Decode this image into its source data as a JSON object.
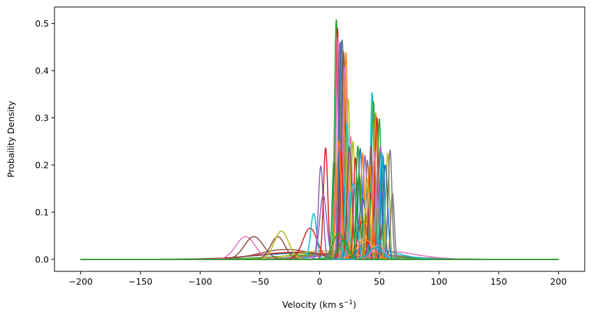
{
  "chart_data": {
    "type": "line",
    "title": "",
    "xlabel": "Velocity (km s",
    "xlabel_sup": "−1",
    "xlabel_close": ")",
    "ylabel": "Probaility Density",
    "xlim": [
      -222,
      222
    ],
    "ylim": [
      -0.0255,
      0.535
    ],
    "x_ticks": [
      -200,
      -150,
      -100,
      -50,
      0,
      50,
      100,
      150,
      200
    ],
    "x_tick_labels": [
      "−200",
      "−150",
      "−100",
      "−50",
      "0",
      "50",
      "100",
      "150",
      "200"
    ],
    "y_ticks": [
      0.0,
      0.1,
      0.2,
      0.3,
      0.4,
      0.5
    ],
    "y_tick_labels": [
      "0.0",
      "0.1",
      "0.2",
      "0.3",
      "0.4",
      "0.5"
    ],
    "x_range": [
      -200,
      200
    ],
    "grid": false,
    "legend": "none",
    "series_encoding": "gaussian components [mean km/s, sigma km/s, amplitude]",
    "series": [
      {
        "color": "#1f77b4",
        "mean": -15,
        "sigma": 38,
        "amp": 0.013
      },
      {
        "color": "#ff7f0e",
        "mean": 25,
        "sigma": 30,
        "amp": 0.016
      },
      {
        "color": "#2ca02c",
        "mean": 10,
        "sigma": 40,
        "amp": 0.011
      },
      {
        "color": "#d62728",
        "mean": -20,
        "sigma": 32,
        "amp": 0.015
      },
      {
        "color": "#9467bd",
        "mean": 35,
        "sigma": 28,
        "amp": 0.014
      },
      {
        "color": "#8c564b",
        "mean": -28,
        "sigma": 22,
        "amp": 0.021
      },
      {
        "color": "#e377c2",
        "mean": 55,
        "sigma": 25,
        "amp": 0.017
      },
      {
        "color": "#7f7f7f",
        "mean": 30,
        "sigma": 35,
        "amp": 0.012
      },
      {
        "color": "#bcbd22",
        "mean": 5,
        "sigma": 25,
        "amp": 0.018
      },
      {
        "color": "#17becf",
        "mean": 45,
        "sigma": 20,
        "amp": 0.02
      },
      {
        "color": "#e377c2",
        "mean": -62,
        "sigma": 8,
        "amp": 0.048
      },
      {
        "color": "#8c564b",
        "mean": -55,
        "sigma": 8,
        "amp": 0.048
      },
      {
        "color": "#8c564b",
        "mean": -35,
        "sigma": 6,
        "amp": 0.048
      },
      {
        "color": "#bcbd22",
        "mean": -32,
        "sigma": 6,
        "amp": 0.06
      },
      {
        "color": "#d62728",
        "mean": -8,
        "sigma": 6,
        "amp": 0.066
      },
      {
        "color": "#17becf",
        "mean": -5,
        "sigma": 2.5,
        "amp": 0.097
      },
      {
        "color": "#9467bd",
        "mean": 1,
        "sigma": 2,
        "amp": 0.198
      },
      {
        "color": "#d62728",
        "mean": 5,
        "sigma": 1.8,
        "amp": 0.236
      },
      {
        "color": "#9467bd",
        "mean": 3,
        "sigma": 3,
        "amp": 0.136
      },
      {
        "color": "#2ca02c",
        "mean": 12,
        "sigma": 1.5,
        "amp": 0.208
      },
      {
        "color": "#2ca02c",
        "mean": 14,
        "sigma": 1.5,
        "amp": 0.508
      },
      {
        "color": "#d62728",
        "mean": 15,
        "sigma": 1.4,
        "amp": 0.49
      },
      {
        "color": "#e377c2",
        "mean": 15.5,
        "sigma": 1.5,
        "amp": 0.47
      },
      {
        "color": "#9467bd",
        "mean": 17,
        "sigma": 1.5,
        "amp": 0.458
      },
      {
        "color": "#1f77b4",
        "mean": 18,
        "sigma": 1.5,
        "amp": 0.462
      },
      {
        "color": "#7f7f7f",
        "mean": 19,
        "sigma": 1.5,
        "amp": 0.465
      },
      {
        "color": "#8c564b",
        "mean": 20,
        "sigma": 1.6,
        "amp": 0.44
      },
      {
        "color": "#ff7f0e",
        "mean": 22,
        "sigma": 1.5,
        "amp": 0.438
      },
      {
        "color": "#e377c2",
        "mean": 21,
        "sigma": 1.7,
        "amp": 0.408
      },
      {
        "color": "#bcbd22",
        "mean": 24,
        "sigma": 1.5,
        "amp": 0.34
      },
      {
        "color": "#d62728",
        "mean": 18,
        "sigma": 1.5,
        "amp": 0.23
      },
      {
        "color": "#ff7f0e",
        "mean": 16,
        "sigma": 2,
        "amp": 0.25
      },
      {
        "color": "#17becf",
        "mean": 23,
        "sigma": 1.6,
        "amp": 0.29
      },
      {
        "color": "#e377c2",
        "mean": 26,
        "sigma": 1.5,
        "amp": 0.26
      },
      {
        "color": "#bcbd22",
        "mean": 28,
        "sigma": 1.5,
        "amp": 0.25
      },
      {
        "color": "#8c564b",
        "mean": 25,
        "sigma": 2,
        "amp": 0.238
      },
      {
        "color": "#d62728",
        "mean": 30,
        "sigma": 1.5,
        "amp": 0.215
      },
      {
        "color": "#2ca02c",
        "mean": 32,
        "sigma": 1.5,
        "amp": 0.24
      },
      {
        "color": "#1f77b4",
        "mean": 34,
        "sigma": 1.6,
        "amp": 0.235
      },
      {
        "color": "#ff7f0e",
        "mean": 36,
        "sigma": 1.5,
        "amp": 0.225
      },
      {
        "color": "#9467bd",
        "mean": 38,
        "sigma": 1.6,
        "amp": 0.22
      },
      {
        "color": "#7f7f7f",
        "mean": 40,
        "sigma": 1.5,
        "amp": 0.21
      },
      {
        "color": "#17becf",
        "mean": 44,
        "sigma": 1.5,
        "amp": 0.353
      },
      {
        "color": "#2ca02c",
        "mean": 45,
        "sigma": 1.6,
        "amp": 0.335
      },
      {
        "color": "#8c564b",
        "mean": 43,
        "sigma": 1.5,
        "amp": 0.24
      },
      {
        "color": "#ff7f0e",
        "mean": 47,
        "sigma": 1.5,
        "amp": 0.31
      },
      {
        "color": "#d62728",
        "mean": 48,
        "sigma": 1.6,
        "amp": 0.3
      },
      {
        "color": "#2ca02c",
        "mean": 50,
        "sigma": 1.5,
        "amp": 0.298
      },
      {
        "color": "#9467bd",
        "mean": 51,
        "sigma": 1.6,
        "amp": 0.24
      },
      {
        "color": "#e377c2",
        "mean": 46,
        "sigma": 1.5,
        "amp": 0.23
      },
      {
        "color": "#1f77b4",
        "mean": 53,
        "sigma": 1.6,
        "amp": 0.22
      },
      {
        "color": "#17becf",
        "mean": 52,
        "sigma": 1.5,
        "amp": 0.225
      },
      {
        "color": "#bcbd22",
        "mean": 57,
        "sigma": 1.5,
        "amp": 0.225
      },
      {
        "color": "#7f7f7f",
        "mean": 59,
        "sigma": 1.6,
        "amp": 0.232
      },
      {
        "color": "#7f7f7f",
        "mean": 61,
        "sigma": 1.5,
        "amp": 0.14
      },
      {
        "color": "#d62728",
        "mean": 43,
        "sigma": 2,
        "amp": 0.14
      },
      {
        "color": "#1f77b4",
        "mean": 36,
        "sigma": 3,
        "amp": 0.13
      },
      {
        "color": "#d62728",
        "mean": 36,
        "sigma": 4,
        "amp": 0.082
      },
      {
        "color": "#2ca02c",
        "mean": 16,
        "sigma": 5,
        "amp": 0.055
      },
      {
        "color": "#ff7f0e",
        "mean": 38,
        "sigma": 7,
        "amp": 0.042
      },
      {
        "color": "#9467bd",
        "mean": 36,
        "sigma": 4,
        "amp": 0.032
      },
      {
        "color": "#17becf",
        "mean": 28,
        "sigma": 3,
        "amp": 0.16
      },
      {
        "color": "#2ca02c",
        "mean": 33,
        "sigma": 2,
        "amp": 0.18
      },
      {
        "color": "#bcbd22",
        "mean": 40,
        "sigma": 2,
        "amp": 0.17
      },
      {
        "color": "#ff7f0e",
        "mean": 42,
        "sigma": 2,
        "amp": 0.2
      },
      {
        "color": "#1f77b4",
        "mean": 55,
        "sigma": 2,
        "amp": 0.2
      },
      {
        "color": "#e377c2",
        "mean": 49,
        "sigma": 5,
        "amp": 0.03
      },
      {
        "color": "#17becf",
        "mean": 47,
        "sigma": 6,
        "amp": 0.025
      },
      {
        "color": "#2ca02c",
        "mean": 20,
        "sigma": 4,
        "amp": 0.04
      }
    ]
  }
}
